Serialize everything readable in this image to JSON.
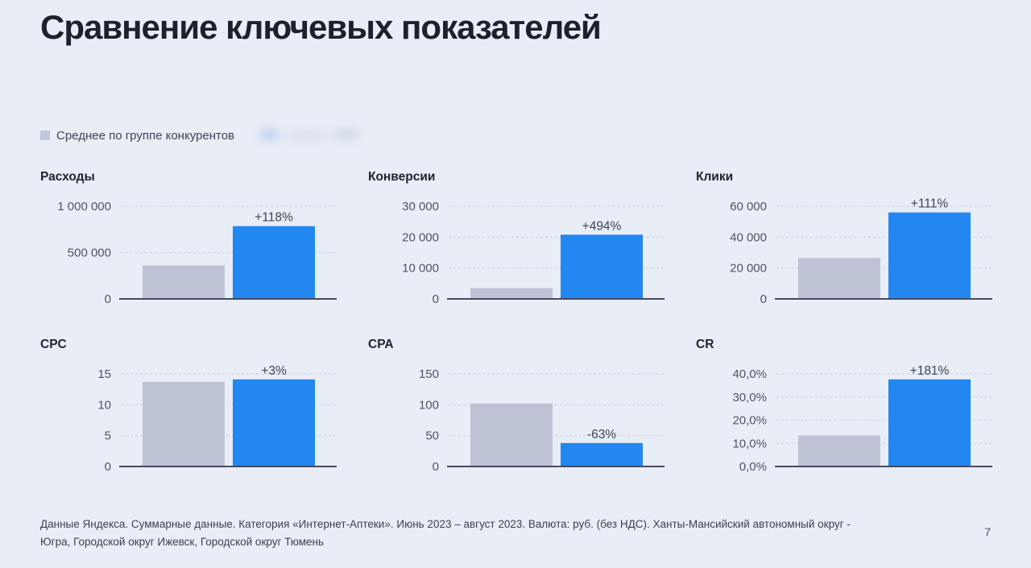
{
  "page": {
    "title": "Сравнение ключевых показателей",
    "page_number": "7",
    "background": "#e8edf6"
  },
  "legend": {
    "competitor_label": "Среднее по группе конкурентов",
    "competitor_swatch_color": "#b8bfd2",
    "advertiser_label_redacted": true
  },
  "colors": {
    "competitor_bar": "#bdc3d4",
    "advertiser_bar": "#2287f0",
    "axis": "#454b5d",
    "grid": "#c6ccd9",
    "tick_text": "#4d5466",
    "delta_text": "#3d4454"
  },
  "chart_data": [
    {
      "type": "bar",
      "title": "Расходы",
      "ymax": 1000000,
      "yticks": [
        {
          "value": 0,
          "label": "0"
        },
        {
          "value": 500000,
          "label": "500 000"
        },
        {
          "value": 1000000,
          "label": "1 000 000"
        }
      ],
      "series": [
        {
          "name": "Среднее по группе конкурентов",
          "value": 360000
        },
        {
          "name": "рекламодатель (название скрыто)",
          "value": 785000
        }
      ],
      "delta_label": "+118%"
    },
    {
      "type": "bar",
      "title": "Конверсии",
      "ymax": 30000,
      "yticks": [
        {
          "value": 0,
          "label": "0"
        },
        {
          "value": 10000,
          "label": "10 000"
        },
        {
          "value": 20000,
          "label": "20 000"
        },
        {
          "value": 30000,
          "label": "30 000"
        }
      ],
      "series": [
        {
          "name": "Среднее по группе конкурентов",
          "value": 3500
        },
        {
          "name": "рекламодатель (название скрыто)",
          "value": 20800
        }
      ],
      "delta_label": "+494%"
    },
    {
      "type": "bar",
      "title": "Клики",
      "ymax": 60000,
      "yticks": [
        {
          "value": 0,
          "label": "0"
        },
        {
          "value": 20000,
          "label": "20 000"
        },
        {
          "value": 40000,
          "label": "40 000"
        },
        {
          "value": 60000,
          "label": "60 000"
        }
      ],
      "series": [
        {
          "name": "Среднее по группе конкурентов",
          "value": 26500
        },
        {
          "name": "рекламодатель (название скрыто)",
          "value": 56000
        }
      ],
      "delta_label": "+111%"
    },
    {
      "type": "bar",
      "title": "CPC",
      "ymax": 15,
      "yticks": [
        {
          "value": 0,
          "label": "0"
        },
        {
          "value": 5,
          "label": "5"
        },
        {
          "value": 10,
          "label": "10"
        },
        {
          "value": 15,
          "label": "15"
        }
      ],
      "series": [
        {
          "name": "Среднее по группе конкурентов",
          "value": 13.7
        },
        {
          "name": "рекламодатель (название скрыто)",
          "value": 14.1
        }
      ],
      "delta_label": "+3%"
    },
    {
      "type": "bar",
      "title": "CPA",
      "ymax": 150,
      "yticks": [
        {
          "value": 0,
          "label": "0"
        },
        {
          "value": 50,
          "label": "50"
        },
        {
          "value": 100,
          "label": "100"
        },
        {
          "value": 150,
          "label": "150"
        }
      ],
      "series": [
        {
          "name": "Среднее по группе конкурентов",
          "value": 102
        },
        {
          "name": "рекламодатель (название скрыто)",
          "value": 38
        }
      ],
      "delta_label": "-63%"
    },
    {
      "type": "bar",
      "title": "CR",
      "ymax": 40,
      "yticks": [
        {
          "value": 0,
          "label": "0,0%"
        },
        {
          "value": 10,
          "label": "10,0%"
        },
        {
          "value": 20,
          "label": "20,0%"
        },
        {
          "value": 30,
          "label": "30,0%"
        },
        {
          "value": 40,
          "label": "40,0%"
        }
      ],
      "series": [
        {
          "name": "Среднее по группе конкурентов",
          "value": 13.4
        },
        {
          "name": "рекламодатель (название скрыто)",
          "value": 37.6
        }
      ],
      "delta_label": "+181%"
    }
  ],
  "footer": {
    "lines": [
      "Данные Яндекса. Суммарные данные. Категория «Интернет-Аптеки». Июнь 2023 – август 2023. Валюта: руб. (без НДС). Ханты-Мансийский автономный округ -",
      "Югра, Городской округ Ижевск, Городской округ Тюмень"
    ]
  }
}
